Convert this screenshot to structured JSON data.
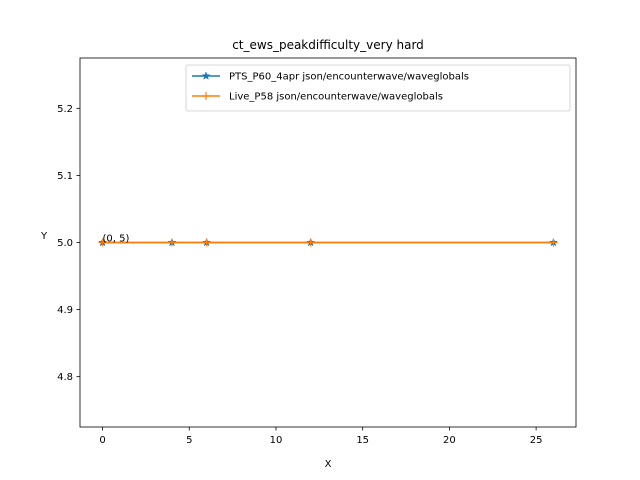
{
  "chart_data": {
    "type": "line",
    "title": "ct_ews_peakdifficulty_very hard",
    "xlabel": "X",
    "ylabel": "Y",
    "xlim": [
      -1.3,
      27.3
    ],
    "ylim": [
      4.725,
      5.275
    ],
    "xticks": [
      0,
      5,
      10,
      15,
      20,
      25
    ],
    "xtick_labels": [
      "0",
      "5",
      "10",
      "15",
      "20",
      "25"
    ],
    "yticks": [
      4.8,
      4.9,
      5.0,
      5.1,
      5.2
    ],
    "ytick_labels": [
      "4.8",
      "4.9",
      "5.0",
      "5.1",
      "5.2"
    ],
    "grid": false,
    "legend_position": "top-right",
    "series": [
      {
        "name": "PTS_P60_4apr json/encounterwave/waveglobals",
        "color": "#1f77b4",
        "marker": "star",
        "x": [
          0,
          4,
          6,
          12,
          26
        ],
        "y": [
          5,
          5,
          5,
          5,
          5
        ]
      },
      {
        "name": "Live_P58 json/encounterwave/waveglobals",
        "color": "#ff7f0e",
        "marker": "plus",
        "x": [
          0,
          4,
          6,
          12,
          26
        ],
        "y": [
          5,
          5,
          5,
          5,
          5
        ]
      }
    ],
    "annotations": [
      {
        "text": "(0, 5)",
        "x": 0,
        "y": 5
      }
    ]
  }
}
